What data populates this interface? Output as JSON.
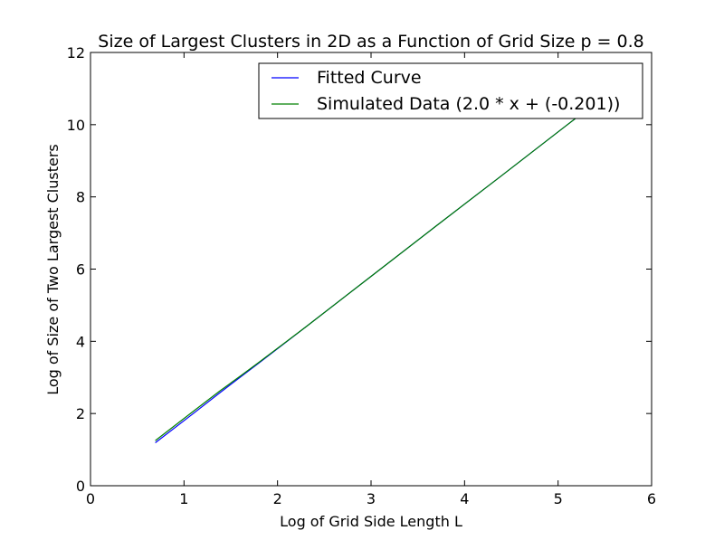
{
  "chart_data": {
    "type": "line",
    "title": "Size of Largest Clusters in 2D as a Function of Grid Size p = 0.8",
    "xlabel": "Log of Grid Side Length L",
    "ylabel": "Log of Size of Two Largest Clusters",
    "xlim": [
      0,
      6
    ],
    "ylim": [
      0,
      12
    ],
    "xticks": [
      0,
      1,
      2,
      3,
      4,
      5,
      6
    ],
    "yticks": [
      0,
      2,
      4,
      6,
      8,
      10,
      12
    ],
    "xtick_labels": [
      "0",
      "1",
      "2",
      "3",
      "4",
      "5",
      "6"
    ],
    "ytick_labels": [
      "0",
      "2",
      "4",
      "6",
      "8",
      "10",
      "12"
    ],
    "grid": false,
    "legend_position": "top-right",
    "series": [
      {
        "name": "Fitted Curve",
        "color": "#0000ff",
        "x": [
          0.693,
          1.099,
          1.386,
          1.609,
          1.792,
          2.303,
          2.996,
          3.689,
          4.382,
          5.075,
          5.768
        ],
        "y": [
          1.19,
          2.0,
          2.58,
          3.02,
          3.38,
          4.4,
          5.79,
          7.18,
          8.56,
          9.95,
          11.34
        ]
      },
      {
        "name": "Simulated Data (2.0 * x + (-0.201))",
        "color": "#008000",
        "x": [
          0.693,
          1.099,
          1.386,
          1.609,
          1.792,
          2.303,
          2.996,
          3.689,
          4.382,
          5.075,
          5.768
        ],
        "y": [
          1.25,
          2.06,
          2.63,
          3.05,
          3.4,
          4.4,
          5.79,
          7.18,
          8.56,
          9.95,
          11.34
        ]
      }
    ]
  }
}
